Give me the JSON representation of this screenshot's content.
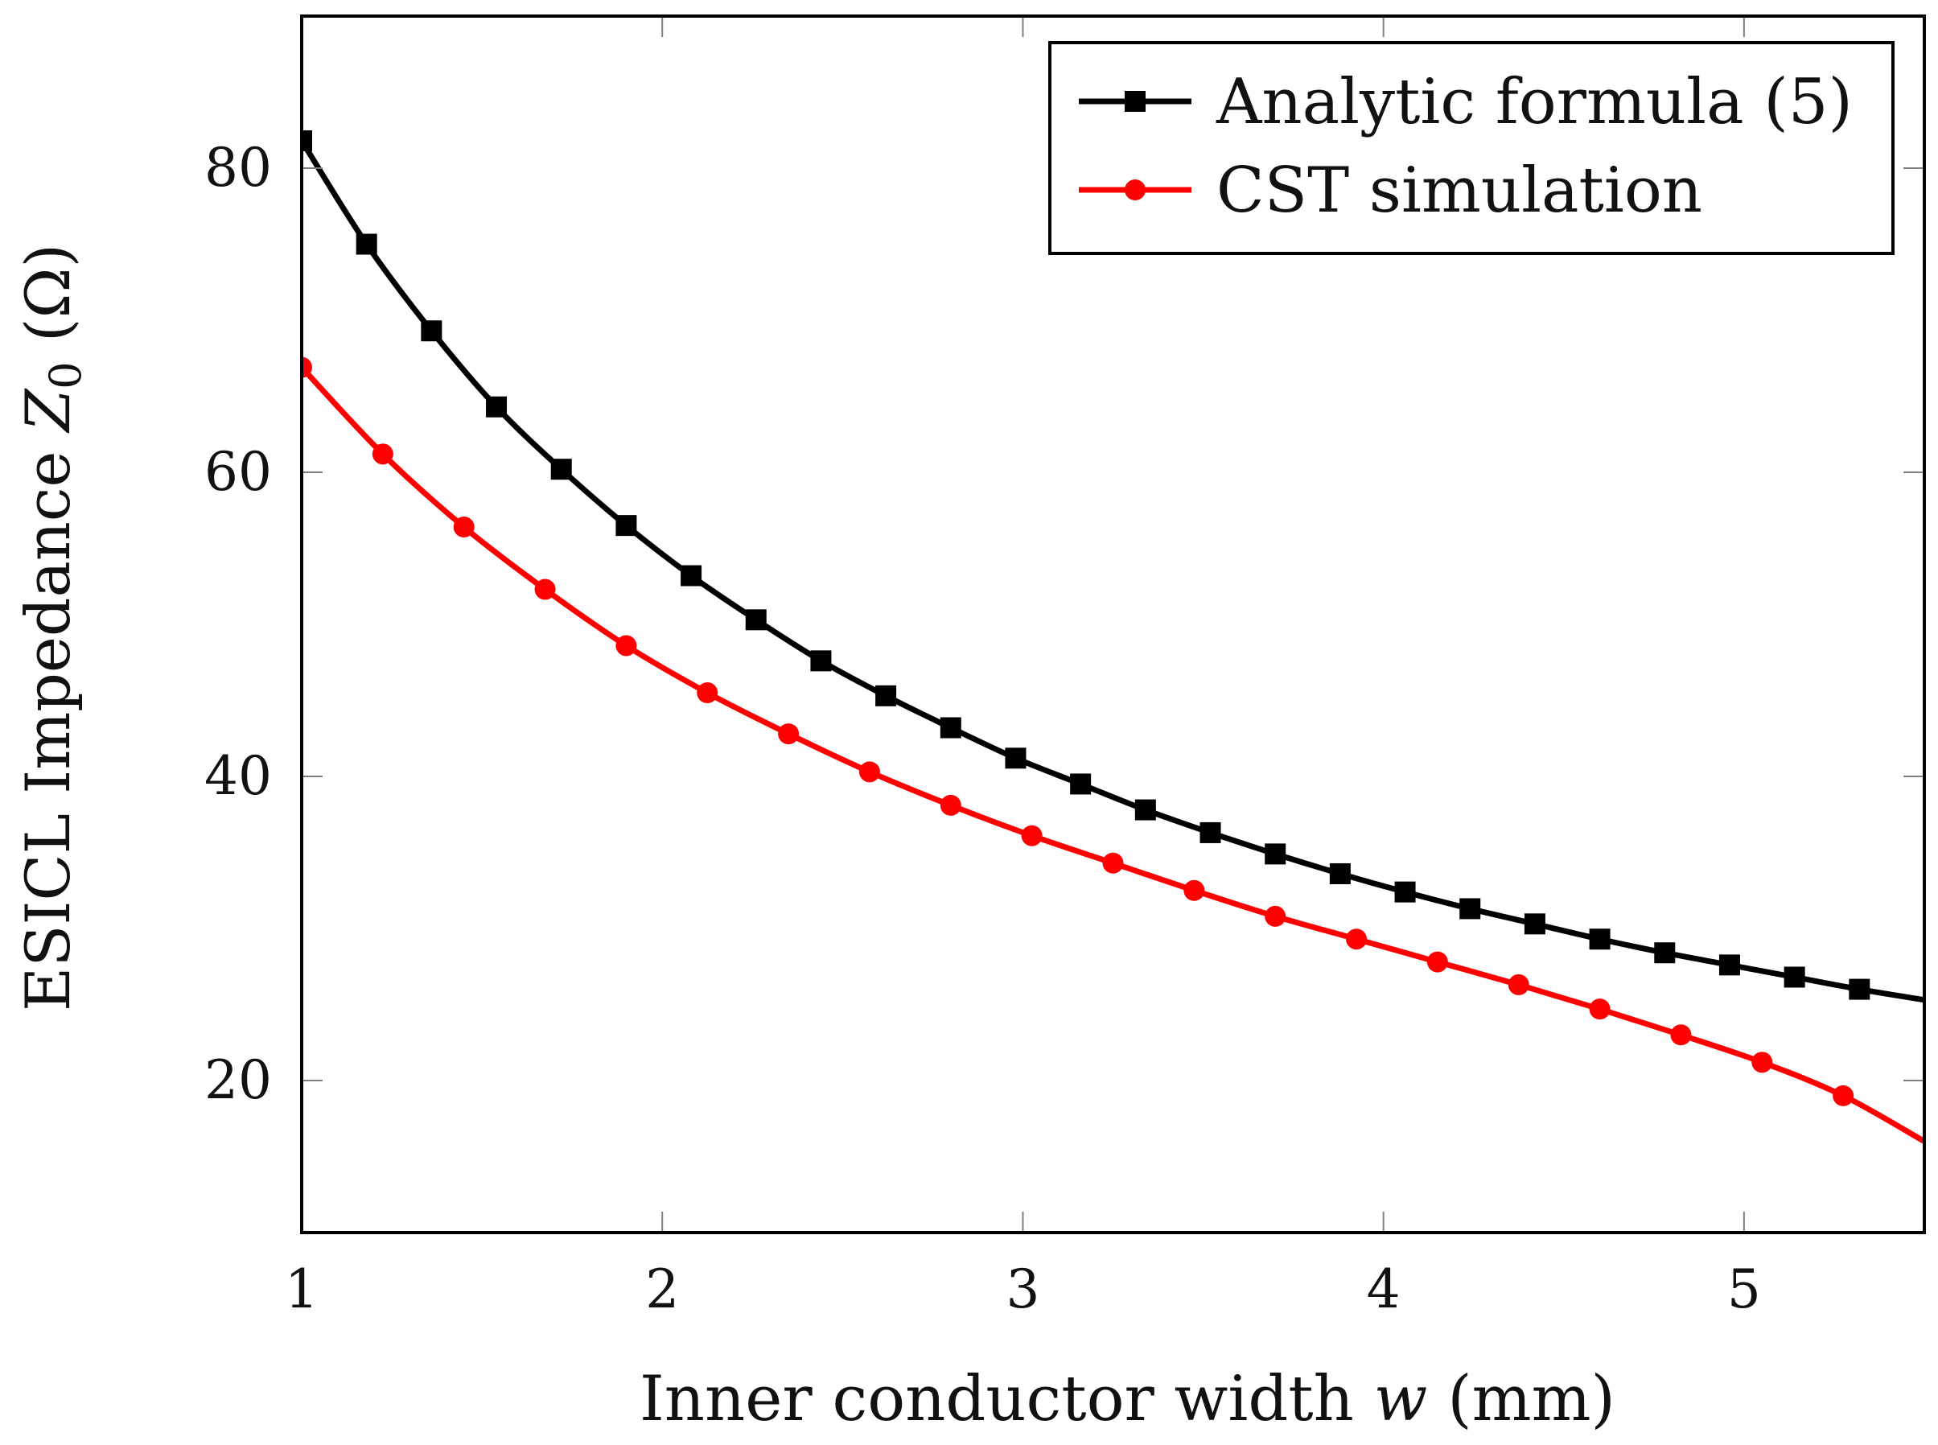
{
  "chart_data": {
    "type": "line",
    "title": "",
    "xlabel": "Inner conductor width w (mm)",
    "xlabel_parts": {
      "prefix": "Inner conductor width ",
      "var": "w",
      "suffix": " (mm)"
    },
    "ylabel": "ESICL Impedance Z0 (Ω)",
    "ylabel_parts": {
      "prefix": "ESICL Impedance ",
      "var": "Z",
      "sub": "0",
      "suffix": " (Ω)"
    },
    "xlim": [
      1,
      5.5
    ],
    "ylim": [
      10,
      90
    ],
    "xticks": [
      1,
      2,
      3,
      4,
      5
    ],
    "yticks": [
      20,
      40,
      60,
      80
    ],
    "grid": false,
    "legend_position": "top-right",
    "series": [
      {
        "name": "Analytic formula (5)",
        "color": "#000000",
        "marker": "square",
        "x": [
          1.0,
          1.18,
          1.36,
          1.54,
          1.72,
          1.9,
          2.08,
          2.26,
          2.44,
          2.62,
          2.8,
          2.98,
          3.16,
          3.34,
          3.52,
          3.7,
          3.88,
          4.06,
          4.24,
          4.42,
          4.6,
          4.78,
          4.96,
          5.14,
          5.32,
          5.5
        ],
        "y": [
          81.8,
          75.0,
          69.3,
          64.3,
          60.2,
          56.5,
          53.2,
          50.3,
          47.6,
          45.3,
          43.2,
          41.2,
          39.5,
          37.8,
          36.3,
          34.9,
          33.6,
          32.4,
          31.3,
          30.3,
          29.3,
          28.4,
          27.6,
          26.8,
          26.0,
          25.3
        ],
        "marker_x": [
          1.0,
          1.18,
          1.36,
          1.54,
          1.72,
          1.9,
          2.08,
          2.26,
          2.44,
          2.62,
          2.8,
          2.98,
          3.16,
          3.34,
          3.52,
          3.7,
          3.88,
          4.06,
          4.24,
          4.42,
          4.6,
          4.78,
          4.96,
          5.14,
          5.32
        ]
      },
      {
        "name": "CST simulation",
        "color": "#ff0000",
        "marker": "circle",
        "x": [
          1.0,
          1.225,
          1.45,
          1.675,
          1.9,
          2.125,
          2.35,
          2.575,
          2.8,
          3.025,
          3.25,
          3.475,
          3.7,
          3.925,
          4.15,
          4.375,
          4.6,
          4.825,
          5.05,
          5.275,
          5.5
        ],
        "y": [
          66.9,
          61.2,
          56.4,
          52.3,
          48.6,
          45.5,
          42.8,
          40.3,
          38.1,
          36.1,
          34.3,
          32.5,
          30.8,
          29.3,
          27.8,
          26.3,
          24.7,
          23.0,
          21.2,
          19.0,
          16.0
        ],
        "marker_x": [
          1.0,
          1.225,
          1.45,
          1.675,
          1.9,
          2.125,
          2.35,
          2.575,
          2.8,
          3.025,
          3.25,
          3.475,
          3.7,
          3.925,
          4.15,
          4.375,
          4.6,
          4.825,
          5.05,
          5.275
        ]
      }
    ]
  }
}
